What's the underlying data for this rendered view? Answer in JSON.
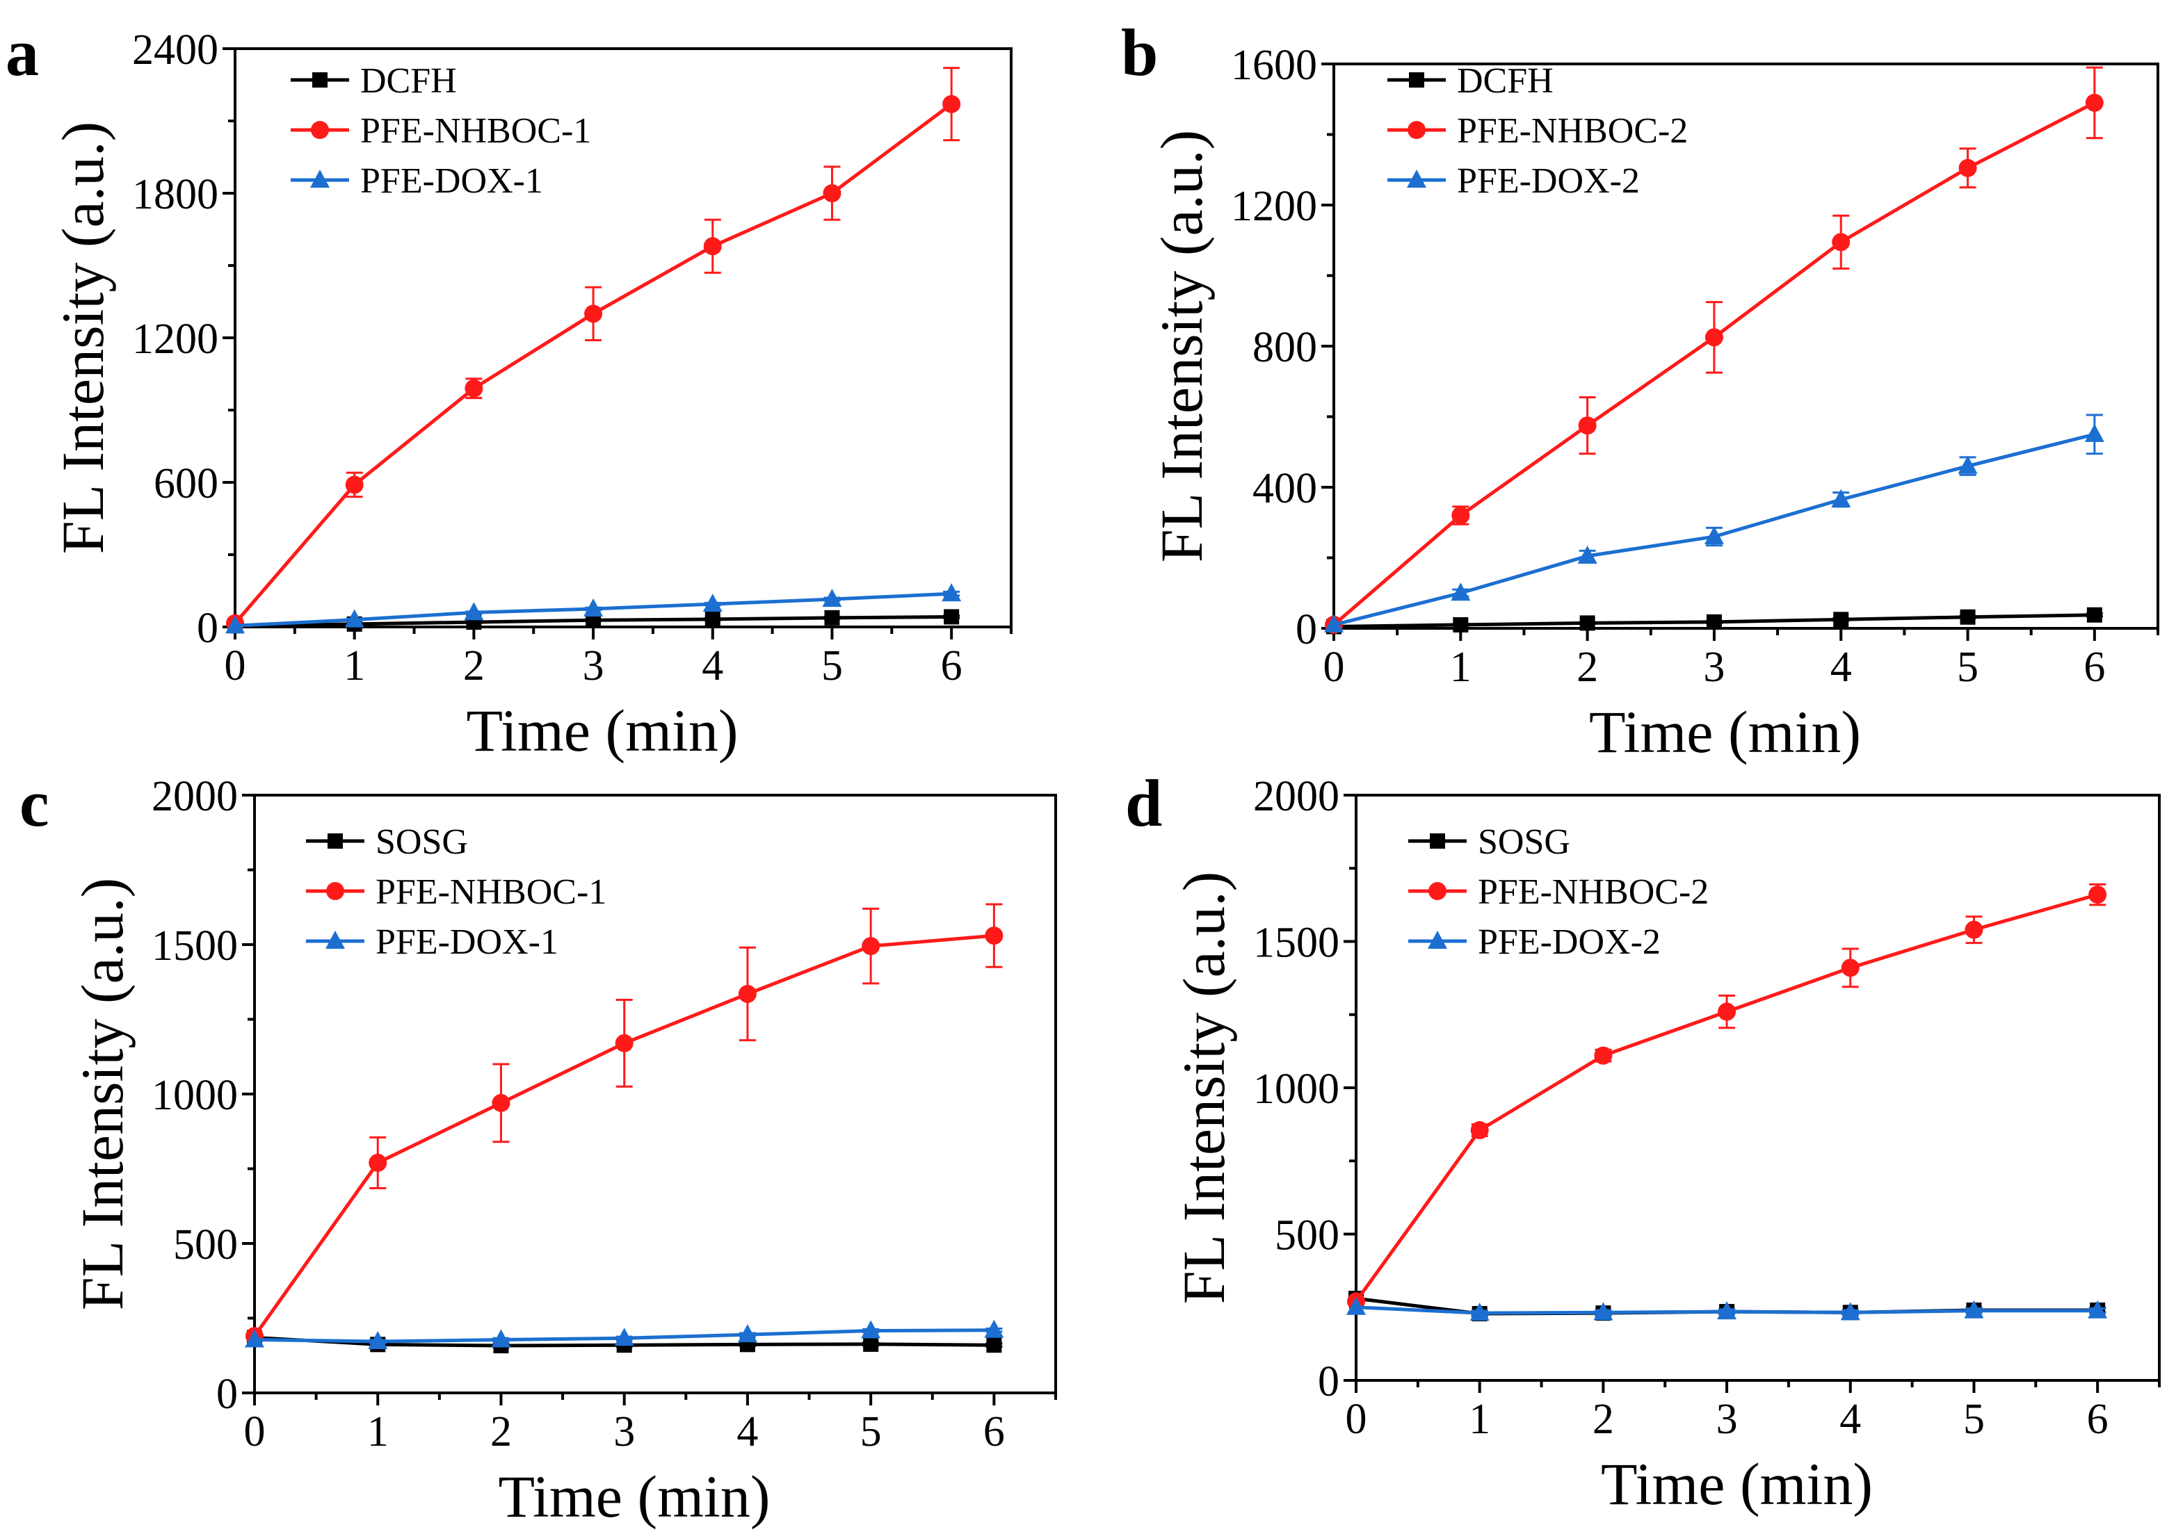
{
  "colors": {
    "black": "#000000",
    "red": "#ff1a1a",
    "blue": "#1c6fd1"
  },
  "chart_data": [
    {
      "type": "line",
      "panel_label": "a",
      "xlabel": "Time (min)",
      "ylabel": "FL Intensity (a.u.)",
      "xlim": [
        0,
        6.5
      ],
      "ylim": [
        0,
        2400
      ],
      "xticks": [
        0,
        1,
        2,
        3,
        4,
        5,
        6
      ],
      "yticks": [
        0,
        600,
        1200,
        1800,
        2400
      ],
      "x": [
        0,
        1,
        2,
        3,
        4,
        5,
        6
      ],
      "series": [
        {
          "name": "DCFH",
          "color": "#000000",
          "marker": "square",
          "values": [
            5,
            12,
            20,
            28,
            32,
            38,
            42
          ],
          "errors": [
            0,
            2,
            3,
            3,
            4,
            4,
            5
          ]
        },
        {
          "name": "PFE-NHBOC-1",
          "color": "#ff1a1a",
          "marker": "circle",
          "values": [
            15,
            590,
            990,
            1300,
            1580,
            1800,
            2170
          ],
          "errors": [
            0,
            50,
            40,
            110,
            110,
            110,
            150
          ]
        },
        {
          "name": "PFE-DOX-1",
          "color": "#1c6fd1",
          "marker": "triangle",
          "values": [
            5,
            30,
            60,
            75,
            95,
            115,
            138
          ],
          "errors": [
            0,
            3,
            4,
            5,
            5,
            6,
            8
          ]
        }
      ]
    },
    {
      "type": "line",
      "panel_label": "b",
      "xlabel": "Time (min)",
      "ylabel": "FL Intensity (a.u.)",
      "xlim": [
        0,
        6.5
      ],
      "ylim": [
        0,
        1600
      ],
      "xticks": [
        0,
        1,
        2,
        3,
        4,
        5,
        6
      ],
      "yticks": [
        0,
        400,
        800,
        1200,
        1600
      ],
      "x": [
        0,
        1,
        2,
        3,
        4,
        5,
        6
      ],
      "series": [
        {
          "name": "DCFH",
          "color": "#000000",
          "marker": "square",
          "values": [
            5,
            10,
            15,
            18,
            25,
            32,
            38
          ],
          "errors": [
            0,
            2,
            2,
            3,
            3,
            3,
            4
          ]
        },
        {
          "name": "PFE-NHBOC-2",
          "color": "#ff1a1a",
          "marker": "circle",
          "values": [
            10,
            320,
            575,
            825,
            1095,
            1305,
            1490
          ],
          "errors": [
            0,
            25,
            80,
            100,
            75,
            55,
            100
          ]
        },
        {
          "name": "PFE-DOX-2",
          "color": "#1c6fd1",
          "marker": "triangle",
          "values": [
            10,
            100,
            205,
            260,
            365,
            460,
            550
          ],
          "errors": [
            0,
            10,
            15,
            25,
            20,
            25,
            55
          ]
        }
      ]
    },
    {
      "type": "line",
      "panel_label": "c",
      "xlabel": "Time (min)",
      "ylabel": "FL Intensity (a.u.)",
      "xlim": [
        0,
        6.5
      ],
      "ylim": [
        0,
        2000
      ],
      "xticks": [
        0,
        1,
        2,
        3,
        4,
        5,
        6
      ],
      "yticks": [
        0,
        500,
        1000,
        1500,
        2000
      ],
      "x": [
        0,
        1,
        2,
        3,
        4,
        5,
        6
      ],
      "series": [
        {
          "name": "SOSG",
          "color": "#000000",
          "marker": "square",
          "values": [
            185,
            162,
            158,
            160,
            162,
            163,
            160
          ],
          "errors": [
            0,
            5,
            5,
            5,
            5,
            5,
            5
          ]
        },
        {
          "name": "PFE-NHBOC-1",
          "color": "#ff1a1a",
          "marker": "circle",
          "values": [
            190,
            770,
            970,
            1170,
            1335,
            1495,
            1530
          ],
          "errors": [
            0,
            85,
            130,
            145,
            155,
            125,
            105
          ]
        },
        {
          "name": "PFE-DOX-1",
          "color": "#1c6fd1",
          "marker": "triangle",
          "values": [
            178,
            172,
            178,
            183,
            195,
            208,
            210
          ],
          "errors": [
            0,
            5,
            5,
            5,
            5,
            5,
            5
          ]
        }
      ]
    },
    {
      "type": "line",
      "panel_label": "d",
      "xlabel": "Time (min)",
      "ylabel": "FL Intensity (a.u.)",
      "xlim": [
        0,
        6.5
      ],
      "ylim": [
        0,
        2000
      ],
      "xticks": [
        0,
        1,
        2,
        3,
        4,
        5,
        6
      ],
      "yticks": [
        0,
        500,
        1000,
        1500,
        2000
      ],
      "x": [
        0,
        1,
        2,
        3,
        4,
        5,
        6
      ],
      "series": [
        {
          "name": "SOSG",
          "color": "#000000",
          "marker": "square",
          "values": [
            280,
            228,
            230,
            235,
            232,
            240,
            240
          ],
          "errors": [
            0,
            8,
            8,
            8,
            8,
            8,
            8
          ]
        },
        {
          "name": "PFE-NHBOC-2",
          "color": "#ff1a1a",
          "marker": "circle",
          "values": [
            270,
            855,
            1110,
            1260,
            1410,
            1540,
            1660
          ],
          "errors": [
            0,
            20,
            20,
            55,
            65,
            45,
            35
          ]
        },
        {
          "name": "PFE-DOX-2",
          "color": "#1c6fd1",
          "marker": "triangle",
          "values": [
            250,
            230,
            232,
            235,
            232,
            238,
            238
          ],
          "errors": [
            0,
            8,
            8,
            8,
            8,
            8,
            8
          ]
        }
      ]
    }
  ]
}
